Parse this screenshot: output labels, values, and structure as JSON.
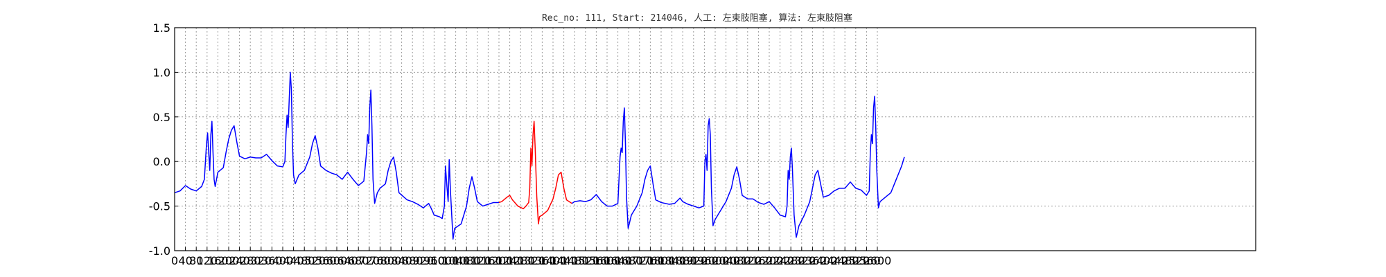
{
  "chart_data": {
    "type": "line",
    "title": "Rec_no: 111, Start: 214046, 人工: 左束肢阻塞, 算法: 左束肢阻塞",
    "xlabel": "",
    "ylabel": "",
    "xlim": [
      0,
      4000
    ],
    "ylim": [
      -1.0,
      1.5
    ],
    "grid": true,
    "y_ticks": [
      -1.0,
      -0.5,
      0.0,
      0.5,
      1.0,
      1.5
    ],
    "x_ticks": [
      0,
      40,
      80,
      120,
      160,
      200,
      240,
      280,
      320,
      360,
      400,
      440,
      480,
      520,
      560,
      600,
      640,
      680,
      720,
      760,
      800,
      840,
      880,
      920,
      960,
      1000,
      1040,
      1080,
      1120,
      1160,
      1200,
      1240,
      1280,
      1320,
      1360,
      1400,
      1440,
      1480,
      1520,
      1560,
      1600,
      1640,
      1680,
      1720,
      1760,
      1800,
      1840,
      1880,
      1920,
      1960,
      2000,
      2040,
      2080,
      2120,
      2160,
      2200,
      2240,
      2280,
      2320,
      2360,
      2400,
      2440,
      2480,
      2520,
      2560,
      2600
    ],
    "colors": {
      "normal": "#0000ff",
      "highlight": "#ff0000"
    },
    "series": [
      {
        "color": "#0000ff",
        "points": [
          [
            0,
            -0.35
          ],
          [
            20,
            -0.33
          ],
          [
            40,
            -0.27
          ],
          [
            60,
            -0.31
          ],
          [
            80,
            -0.33
          ],
          [
            100,
            -0.28
          ],
          [
            110,
            -0.2
          ],
          [
            118,
            0.2
          ],
          [
            122,
            0.32
          ],
          [
            126,
            0.1
          ],
          [
            130,
            -0.1
          ],
          [
            134,
            0.3
          ],
          [
            138,
            0.45
          ],
          [
            142,
            0.1
          ],
          [
            146,
            -0.2
          ],
          [
            150,
            -0.28
          ],
          [
            160,
            -0.12
          ],
          [
            180,
            -0.07
          ],
          [
            190,
            0.1
          ],
          [
            200,
            0.25
          ],
          [
            210,
            0.35
          ],
          [
            220,
            0.4
          ],
          [
            230,
            0.22
          ],
          [
            240,
            0.06
          ],
          [
            260,
            0.03
          ],
          [
            280,
            0.05
          ],
          [
            300,
            0.04
          ],
          [
            320,
            0.04
          ],
          [
            340,
            0.08
          ],
          [
            360,
            0.01
          ],
          [
            380,
            -0.05
          ],
          [
            400,
            -0.06
          ],
          [
            408,
            0.0
          ],
          [
            412,
            0.3
          ],
          [
            416,
            0.52
          ],
          [
            420,
            0.38
          ],
          [
            424,
            0.7
          ],
          [
            428,
            1.0
          ],
          [
            432,
            0.8
          ],
          [
            436,
            0.2
          ],
          [
            440,
            -0.15
          ],
          [
            446,
            -0.25
          ],
          [
            460,
            -0.15
          ],
          [
            480,
            -0.1
          ],
          [
            500,
            0.05
          ],
          [
            510,
            0.2
          ],
          [
            520,
            0.29
          ],
          [
            530,
            0.15
          ],
          [
            540,
            -0.05
          ],
          [
            560,
            -0.1
          ],
          [
            580,
            -0.13
          ],
          [
            600,
            -0.15
          ],
          [
            620,
            -0.2
          ],
          [
            640,
            -0.12
          ],
          [
            660,
            -0.2
          ],
          [
            680,
            -0.27
          ],
          [
            700,
            -0.22
          ],
          [
            710,
            0.1
          ],
          [
            714,
            0.3
          ],
          [
            718,
            0.2
          ],
          [
            722,
            0.6
          ],
          [
            726,
            0.8
          ],
          [
            730,
            0.4
          ],
          [
            734,
            -0.2
          ],
          [
            740,
            -0.47
          ],
          [
            750,
            -0.35
          ],
          [
            760,
            -0.3
          ],
          [
            780,
            -0.25
          ],
          [
            790,
            -0.1
          ],
          [
            800,
            0.0
          ],
          [
            810,
            0.05
          ],
          [
            820,
            -0.12
          ],
          [
            830,
            -0.35
          ],
          [
            860,
            -0.43
          ],
          [
            880,
            -0.45
          ],
          [
            900,
            -0.48
          ],
          [
            920,
            -0.52
          ],
          [
            940,
            -0.47
          ],
          [
            950,
            -0.53
          ],
          [
            960,
            -0.6
          ],
          [
            980,
            -0.62
          ],
          [
            990,
            -0.64
          ],
          [
            998,
            -0.5
          ],
          [
            1002,
            -0.05
          ],
          [
            1008,
            -0.3
          ],
          [
            1012,
            -0.45
          ],
          [
            1016,
            0.02
          ],
          [
            1020,
            -0.3
          ],
          [
            1030,
            -0.87
          ],
          [
            1036,
            -0.75
          ],
          [
            1060,
            -0.7
          ],
          [
            1080,
            -0.5
          ],
          [
            1090,
            -0.3
          ],
          [
            1100,
            -0.17
          ],
          [
            1110,
            -0.3
          ],
          [
            1120,
            -0.45
          ],
          [
            1140,
            -0.5
          ],
          [
            1160,
            -0.48
          ],
          [
            1180,
            -0.46
          ],
          [
            1200,
            -0.46
          ]
        ]
      },
      {
        "color": "#ff0000",
        "points": [
          [
            1200,
            -0.46
          ],
          [
            1210,
            -0.45
          ],
          [
            1230,
            -0.4
          ],
          [
            1240,
            -0.38
          ],
          [
            1250,
            -0.43
          ],
          [
            1270,
            -0.5
          ],
          [
            1290,
            -0.53
          ],
          [
            1300,
            -0.5
          ],
          [
            1310,
            -0.46
          ],
          [
            1314,
            -0.3
          ],
          [
            1318,
            0.15
          ],
          [
            1322,
            -0.05
          ],
          [
            1326,
            0.3
          ],
          [
            1330,
            0.45
          ],
          [
            1334,
            0.15
          ],
          [
            1340,
            -0.4
          ],
          [
            1346,
            -0.7
          ],
          [
            1350,
            -0.62
          ],
          [
            1360,
            -0.6
          ],
          [
            1380,
            -0.55
          ],
          [
            1400,
            -0.42
          ],
          [
            1410,
            -0.3
          ],
          [
            1420,
            -0.15
          ],
          [
            1430,
            -0.12
          ],
          [
            1440,
            -0.3
          ],
          [
            1450,
            -0.43
          ],
          [
            1470,
            -0.47
          ]
        ]
      },
      {
        "color": "#0000ff",
        "points": [
          [
            1470,
            -0.47
          ],
          [
            1480,
            -0.45
          ],
          [
            1500,
            -0.44
          ],
          [
            1520,
            -0.45
          ],
          [
            1540,
            -0.43
          ],
          [
            1560,
            -0.37
          ],
          [
            1580,
            -0.45
          ],
          [
            1600,
            -0.5
          ],
          [
            1620,
            -0.5
          ],
          [
            1640,
            -0.47
          ],
          [
            1648,
            0.05
          ],
          [
            1652,
            0.15
          ],
          [
            1656,
            0.1
          ],
          [
            1660,
            0.45
          ],
          [
            1664,
            0.6
          ],
          [
            1668,
            0.2
          ],
          [
            1672,
            -0.4
          ],
          [
            1678,
            -0.75
          ],
          [
            1690,
            -0.6
          ],
          [
            1710,
            -0.5
          ],
          [
            1730,
            -0.35
          ],
          [
            1740,
            -0.2
          ],
          [
            1750,
            -0.1
          ],
          [
            1760,
            -0.05
          ],
          [
            1770,
            -0.25
          ],
          [
            1780,
            -0.43
          ],
          [
            1800,
            -0.46
          ],
          [
            1830,
            -0.48
          ],
          [
            1850,
            -0.47
          ],
          [
            1870,
            -0.41
          ],
          [
            1880,
            -0.45
          ],
          [
            1900,
            -0.48
          ],
          [
            1920,
            -0.5
          ],
          [
            1940,
            -0.52
          ],
          [
            1958,
            -0.5
          ],
          [
            1962,
            0.0
          ],
          [
            1966,
            0.08
          ],
          [
            1970,
            -0.1
          ],
          [
            1974,
            0.4
          ],
          [
            1978,
            0.48
          ],
          [
            1982,
            0.3
          ],
          [
            1986,
            -0.3
          ],
          [
            1992,
            -0.72
          ],
          [
            2000,
            -0.65
          ],
          [
            2020,
            -0.55
          ],
          [
            2040,
            -0.45
          ],
          [
            2060,
            -0.3
          ],
          [
            2070,
            -0.15
          ],
          [
            2080,
            -0.06
          ],
          [
            2090,
            -0.2
          ],
          [
            2100,
            -0.38
          ],
          [
            2120,
            -0.42
          ],
          [
            2140,
            -0.42
          ],
          [
            2160,
            -0.46
          ],
          [
            2180,
            -0.48
          ],
          [
            2200,
            -0.45
          ],
          [
            2220,
            -0.52
          ],
          [
            2240,
            -0.6
          ],
          [
            2260,
            -0.62
          ],
          [
            2266,
            -0.5
          ],
          [
            2270,
            -0.1
          ],
          [
            2274,
            -0.2
          ],
          [
            2278,
            0.05
          ],
          [
            2282,
            0.15
          ],
          [
            2286,
            -0.1
          ],
          [
            2292,
            -0.6
          ],
          [
            2300,
            -0.85
          ],
          [
            2310,
            -0.72
          ],
          [
            2330,
            -0.6
          ],
          [
            2350,
            -0.45
          ],
          [
            2360,
            -0.3
          ],
          [
            2370,
            -0.15
          ],
          [
            2380,
            -0.1
          ],
          [
            2390,
            -0.25
          ],
          [
            2400,
            -0.4
          ],
          [
            2420,
            -0.38
          ],
          [
            2440,
            -0.33
          ],
          [
            2460,
            -0.3
          ],
          [
            2480,
            -0.3
          ],
          [
            2500,
            -0.23
          ],
          [
            2520,
            -0.3
          ],
          [
            2540,
            -0.32
          ],
          [
            2560,
            -0.38
          ],
          [
            2570,
            -0.33
          ],
          [
            2574,
            0.1
          ],
          [
            2578,
            0.3
          ],
          [
            2582,
            0.2
          ],
          [
            2586,
            0.6
          ],
          [
            2590,
            0.73
          ],
          [
            2594,
            0.4
          ],
          [
            2598,
            -0.1
          ],
          [
            2604,
            -0.52
          ],
          [
            2610,
            -0.45
          ],
          [
            2630,
            -0.4
          ],
          [
            2650,
            -0.35
          ],
          [
            2670,
            -0.2
          ],
          [
            2690,
            -0.05
          ],
          [
            2700,
            0.05
          ]
        ]
      }
    ]
  }
}
